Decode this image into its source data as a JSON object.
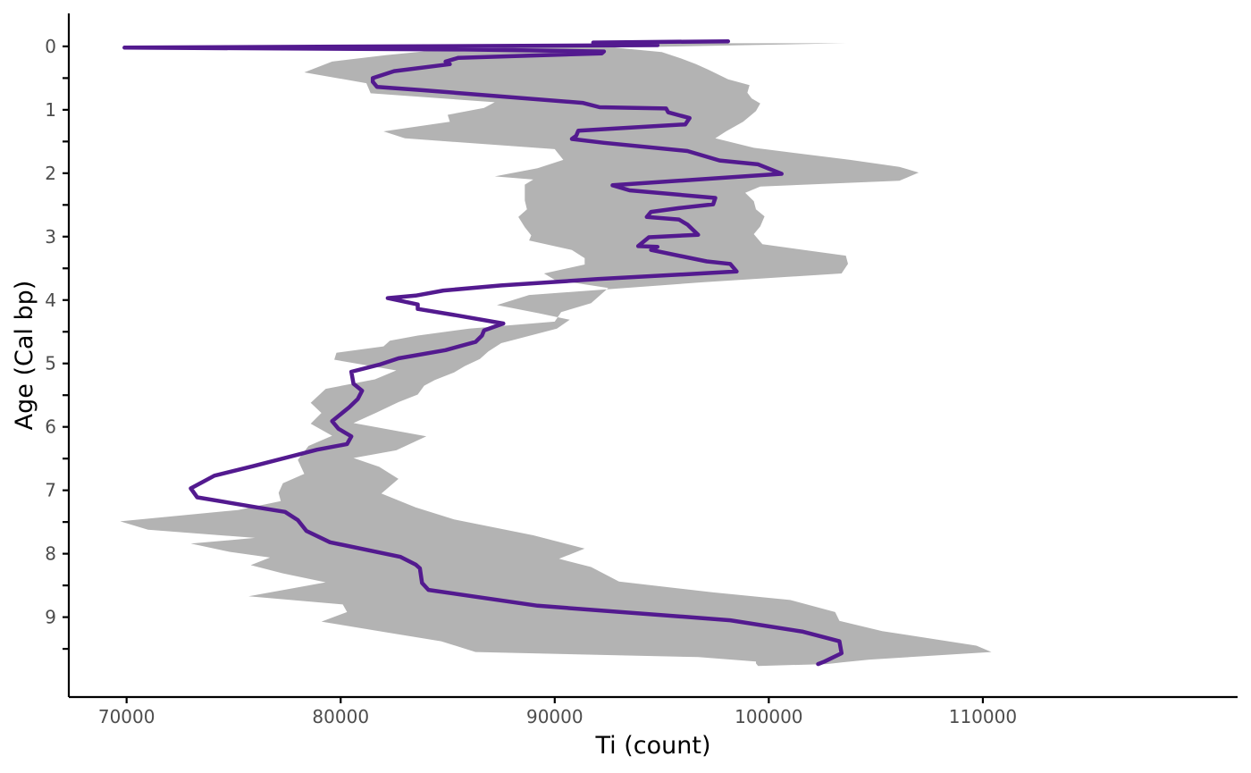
{
  "chart_data": {
    "type": "line",
    "xlabel": "Ti (count)",
    "ylabel": "Age (Cal bp)",
    "xlim": [
      67300,
      121900
    ],
    "ylim": [
      -0.52,
      10.26
    ],
    "y_reversed": true,
    "grid": false,
    "x_ticks": [
      70000,
      80000,
      90000,
      100000,
      110000
    ],
    "x_tick_labels": [
      "70000",
      "80000",
      "90000",
      "100000",
      "110000"
    ],
    "y_major_ticks": [
      0,
      1,
      2,
      3,
      4,
      5,
      6,
      7,
      8,
      9
    ],
    "y_tick_labels": [
      "0",
      "1",
      "2",
      "3",
      "4",
      "5",
      "6",
      "7",
      "8",
      "9"
    ],
    "y_minor_ticks": [
      0.5,
      1.5,
      2.5,
      3.5,
      4.5,
      5.5,
      6.5,
      7.5,
      8.5,
      9.5
    ],
    "colors": {
      "line": "#531a8f",
      "band": "#b3b3b3",
      "axis": "#000000"
    },
    "series": [
      {
        "type": "line",
        "x_values": [
          98100,
          91800,
          94800,
          69900,
          85800,
          92300,
          92200,
          85500,
          84900,
          85100,
          82500,
          81500,
          81500,
          81700,
          83800,
          91300,
          92100,
          95200,
          95300,
          96300,
          96100,
          91100,
          91000,
          90800,
          92300,
          96200,
          97700,
          99500,
          100600,
          92700,
          93500,
          97500,
          97400,
          95800,
          94500,
          94300,
          95800,
          96200,
          96700,
          94400,
          93900,
          94800,
          94500,
          97100,
          98200,
          98500,
          92000,
          87500,
          84800,
          83500,
          82200,
          83600,
          83600,
          85400,
          87600,
          86700,
          86600,
          86300,
          84900,
          82700,
          81800,
          80500,
          80600,
          81000,
          80800,
          80400,
          79600,
          79900,
          80500,
          80300,
          78900,
          75900,
          74100,
          73000,
          73300,
          76100,
          77400,
          78000,
          78400,
          79500,
          82800,
          83500,
          83700,
          83800,
          84100,
          89200,
          98200,
          101600,
          103300,
          103400,
          102600,
          102300
        ],
        "y_values": [
          -0.08,
          -0.06,
          -0.02,
          0.02,
          0.05,
          0.08,
          0.11,
          0.18,
          0.24,
          0.28,
          0.39,
          0.5,
          0.56,
          0.64,
          0.69,
          0.89,
          0.96,
          0.98,
          1.04,
          1.13,
          1.23,
          1.33,
          1.41,
          1.46,
          1.52,
          1.65,
          1.8,
          1.86,
          2.01,
          2.19,
          2.27,
          2.39,
          2.49,
          2.55,
          2.61,
          2.69,
          2.73,
          2.81,
          2.97,
          3.01,
          3.15,
          3.16,
          3.21,
          3.39,
          3.43,
          3.55,
          3.67,
          3.77,
          3.85,
          3.93,
          3.97,
          4.07,
          4.14,
          4.24,
          4.37,
          4.48,
          4.56,
          4.66,
          4.79,
          4.92,
          5.02,
          5.13,
          5.32,
          5.43,
          5.56,
          5.69,
          5.91,
          6.03,
          6.15,
          6.27,
          6.36,
          6.62,
          6.77,
          6.97,
          7.11,
          7.27,
          7.34,
          7.47,
          7.64,
          7.82,
          8.05,
          8.17,
          8.23,
          8.46,
          8.57,
          8.82,
          9.05,
          9.23,
          9.38,
          9.57,
          9.7,
          9.74
        ]
      },
      {
        "type": "band",
        "left_x": [
          95200,
          92000,
          84800,
          82100,
          79600,
          78300,
          81200,
          81400,
          87200,
          86700,
          85000,
          85100,
          82000,
          83000,
          90000,
          90400,
          89200,
          87200,
          89000,
          88600,
          88600,
          88600,
          88700,
          88300,
          88600,
          88900,
          88800,
          90800,
          91400,
          91400,
          89500,
          90000,
          92500,
          92100,
          91700,
          90300,
          90000,
          86000,
          83600,
          82300,
          82000,
          79800,
          79700,
          82600,
          81600,
          79300,
          78600,
          79100,
          78600,
          79600,
          78500,
          78000,
          78300,
          77300,
          77100,
          77200,
          75200,
          69700,
          71000,
          76000,
          73000,
          74800,
          76700,
          75800,
          77300,
          79300,
          75700,
          80100,
          80300,
          79100,
          82300,
          84700,
          86300,
          96700,
          99400,
          99400,
          99500
        ],
        "left_y": [
          -0.05,
          -0.02,
          0.05,
          0.14,
          0.24,
          0.41,
          0.58,
          0.74,
          0.88,
          0.97,
          1.08,
          1.19,
          1.34,
          1.45,
          1.62,
          1.79,
          1.92,
          2.05,
          2.1,
          2.18,
          2.3,
          2.43,
          2.57,
          2.69,
          2.85,
          2.98,
          3.06,
          3.21,
          3.34,
          3.44,
          3.58,
          3.68,
          3.81,
          3.93,
          4.05,
          4.19,
          4.34,
          4.45,
          4.56,
          4.64,
          4.73,
          4.83,
          4.94,
          5.11,
          5.25,
          5.4,
          5.62,
          5.78,
          5.95,
          6.14,
          6.3,
          6.52,
          6.74,
          6.89,
          7.04,
          7.17,
          7.31,
          7.49,
          7.62,
          7.75,
          7.84,
          7.97,
          8.06,
          8.18,
          8.31,
          8.45,
          8.67,
          8.8,
          8.92,
          9.07,
          9.25,
          9.38,
          9.55,
          9.63,
          9.7,
          9.73,
          9.77
        ],
        "right_x": [
          103600,
          92800,
          95000,
          95900,
          96600,
          97200,
          98100,
          99100,
          99000,
          99200,
          99600,
          99400,
          98800,
          98000,
          97500,
          99300,
          103800,
          106100,
          107000,
          106100,
          99600,
          98900,
          99300,
          99400,
          99800,
          99600,
          99300,
          99700,
          103600,
          103700,
          103400,
          96900,
          88800,
          87300,
          89300,
          90700,
          90100,
          87500,
          86900,
          86500,
          85800,
          85300,
          84400,
          83900,
          83600,
          82700,
          81700,
          80600,
          84000,
          82600,
          80600,
          81800,
          82700,
          81900,
          83500,
          85300,
          89000,
          91400,
          90200,
          91700,
          93000,
          97400,
          101000,
          103100,
          103300,
          105300,
          109700,
          110400,
          104700,
          103500,
          102700
        ],
        "right_y": [
          -0.05,
          0.02,
          0.09,
          0.19,
          0.28,
          0.37,
          0.52,
          0.61,
          0.73,
          0.82,
          0.9,
          1.02,
          1.19,
          1.34,
          1.45,
          1.6,
          1.79,
          1.9,
          1.99,
          2.12,
          2.21,
          2.31,
          2.44,
          2.57,
          2.68,
          2.84,
          2.96,
          3.12,
          3.3,
          3.43,
          3.58,
          3.72,
          3.92,
          4.08,
          4.21,
          4.31,
          4.45,
          4.68,
          4.81,
          4.93,
          5.04,
          5.14,
          5.26,
          5.35,
          5.49,
          5.61,
          5.77,
          5.94,
          6.15,
          6.37,
          6.49,
          6.63,
          6.82,
          7.05,
          7.27,
          7.46,
          7.71,
          7.92,
          8.08,
          8.21,
          8.44,
          8.61,
          8.73,
          8.92,
          9.06,
          9.22,
          9.45,
          9.55,
          9.67,
          9.71,
          9.74
        ]
      }
    ]
  }
}
